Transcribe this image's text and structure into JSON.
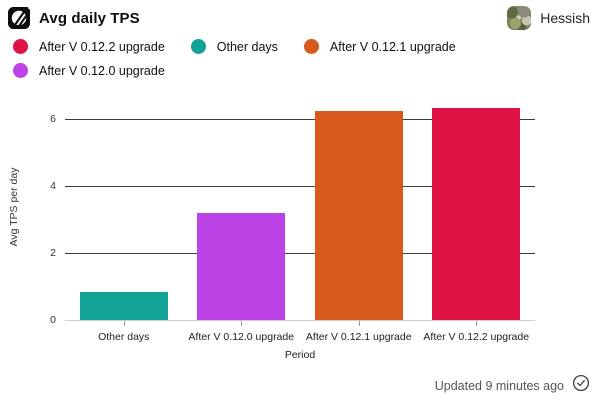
{
  "header": {
    "title": "Avg daily TPS",
    "user": "Hessish"
  },
  "legend": [
    {
      "label": "After V 0.12.2 upgrade",
      "color": "#E01347"
    },
    {
      "label": "Other days",
      "color": "#12A396"
    },
    {
      "label": "After V 0.12.1 upgrade",
      "color": "#D65A1B"
    },
    {
      "label": "After V 0.12.0 upgrade",
      "color": "#BD43E6"
    }
  ],
  "chart_data": {
    "type": "bar",
    "title": "Avg daily TPS",
    "categories": [
      "Other days",
      "After V 0.12.0 upgrade",
      "After V 0.12.1 upgrade",
      "After V 0.12.2 upgrade"
    ],
    "values": [
      0.85,
      3.2,
      6.25,
      6.32
    ],
    "colors": [
      "#12A396",
      "#BD43E6",
      "#D65A1B",
      "#E01347"
    ],
    "xlabel": "Period",
    "ylabel": "Avg TPS per day",
    "yticks": [
      0,
      2,
      4,
      6
    ],
    "ylim": [
      0,
      6.72
    ],
    "grid": true,
    "legend_position": "top",
    "grid_color": "#3c3c3c",
    "baseline_color": "#cccccc"
  },
  "footer": {
    "updated": "Updated 9 minutes ago"
  },
  "icons": {
    "logo": "leaf-logo-icon",
    "status": "check-circle-icon"
  }
}
